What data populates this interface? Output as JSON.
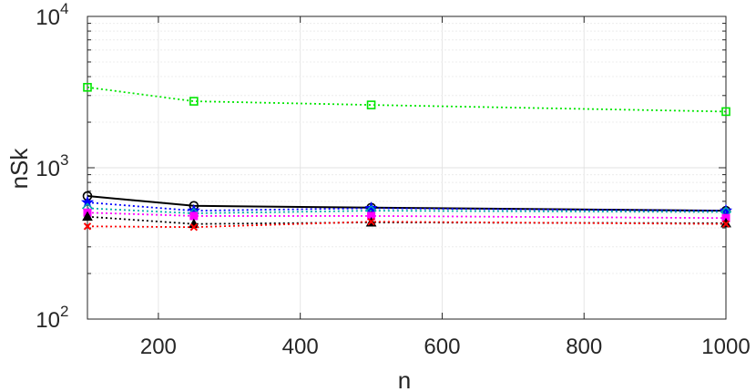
{
  "chart_data": {
    "type": "line",
    "title": "",
    "xlabel": "n",
    "ylabel": "nSk",
    "xlim": [
      100,
      1000
    ],
    "ylim": [
      100,
      10000
    ],
    "yscale": "log",
    "grid": true,
    "x": [
      100,
      250,
      500,
      1000
    ],
    "x_ticks": [
      200,
      400,
      600,
      800,
      1000
    ],
    "x_tick_labels": [
      "200",
      "400",
      "600",
      "800",
      "1000"
    ],
    "y_ticks": [
      100,
      1000,
      10000
    ],
    "y_tick_labels": [
      {
        "base": "10",
        "exp": "2"
      },
      {
        "base": "10",
        "exp": "3"
      },
      {
        "base": "10",
        "exp": "4"
      }
    ],
    "series": [
      {
        "values": [
          3400,
          2750,
          2600,
          2350
        ],
        "color": "#00e600",
        "line": "dotted",
        "marker": "square"
      },
      {
        "values": [
          650,
          560,
          545,
          520
        ],
        "color": "#000000",
        "line": "solid",
        "marker": "circle"
      },
      {
        "values": [
          590,
          520,
          540,
          520
        ],
        "color": "#0000ff",
        "line": "dotted",
        "marker": "star"
      },
      {
        "values": [
          540,
          500,
          520,
          510
        ],
        "color": "#00aaaa",
        "line": "dotted",
        "marker": "diamond"
      },
      {
        "values": [
          505,
          480,
          480,
          465
        ],
        "color": "#ff00ff",
        "line": "dotted",
        "marker": "square-filled"
      },
      {
        "values": [
          475,
          425,
          435,
          430
        ],
        "color": "#000000",
        "line": "dotted",
        "marker": "triangle"
      },
      {
        "values": [
          410,
          405,
          440,
          425
        ],
        "color": "#ff0000",
        "line": "dotted",
        "marker": "cross"
      }
    ]
  }
}
